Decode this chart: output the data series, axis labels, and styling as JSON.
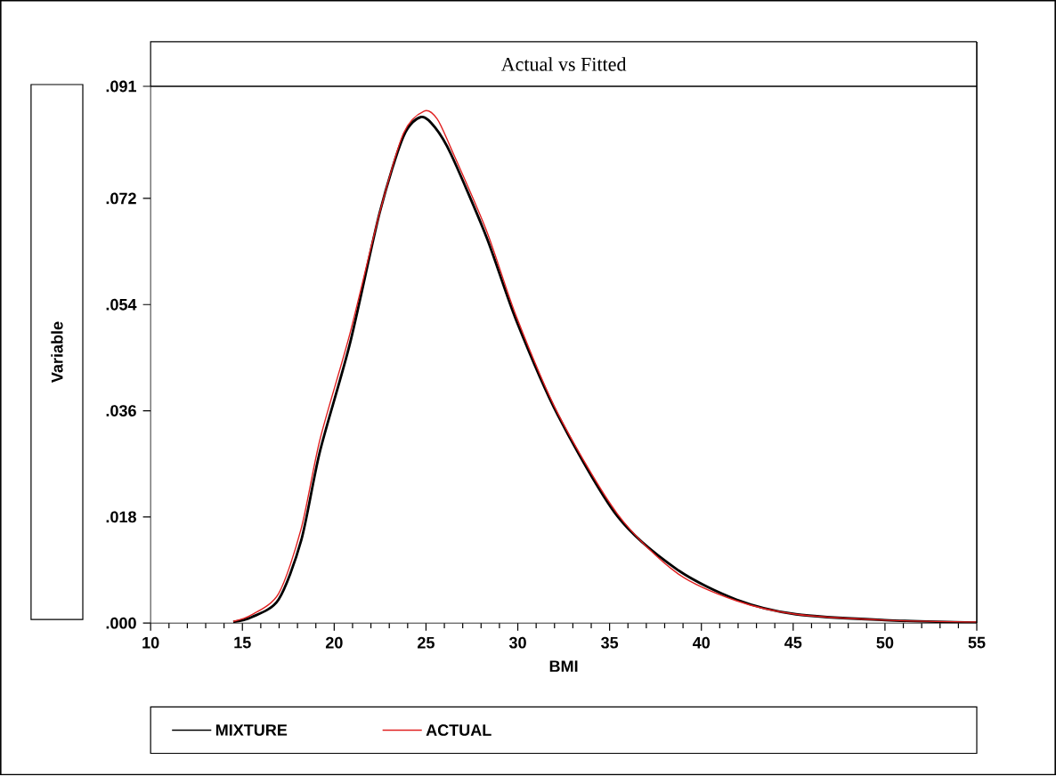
{
  "chart_data": {
    "type": "line",
    "title": "Actual vs Fitted",
    "xlabel": "BMI",
    "ylabel": "Variable",
    "xlim": [
      10,
      55
    ],
    "xticks": [
      10,
      15,
      20,
      25,
      30,
      35,
      40,
      45,
      50,
      55
    ],
    "ylim": [
      0,
      0.091
    ],
    "yticks": [
      {
        "value": 0,
        "label": ".000"
      },
      {
        "value": 0.018,
        "label": ".018"
      },
      {
        "value": 0.036,
        "label": ".036"
      },
      {
        "value": 0.054,
        "label": ".054"
      },
      {
        "value": 0.072,
        "label": ".072"
      },
      {
        "value": 0.091,
        "label": ".091"
      }
    ],
    "legend": "bottom",
    "grid": false,
    "marker": "none",
    "line_style": "solid",
    "series": [
      {
        "name": "MIXTURE",
        "color": "#000000",
        "x": [
          14.5,
          15.5,
          16.97,
          18.2,
          19.23,
          20.85,
          22.47,
          23.77,
          24.74,
          25.5,
          26.36,
          28.3,
          29.92,
          32.19,
          35.43,
          38.67,
          41.9,
          45.15,
          50,
          55
        ],
        "values": [
          0.0002,
          0.001,
          0.004,
          0.014,
          0.0292,
          0.0473,
          0.0695,
          0.0825,
          0.0858,
          0.084,
          0.0795,
          0.0654,
          0.0513,
          0.0352,
          0.0181,
          0.0091,
          0.004,
          0.0015,
          0.0005,
          0.0001
        ]
      },
      {
        "name": "ACTUAL",
        "color": "#e02020",
        "x": [
          14.5,
          15.5,
          16.97,
          18.2,
          19.23,
          20.85,
          22.47,
          23.77,
          24.9,
          25.6,
          26.36,
          28.3,
          29.92,
          32.19,
          35.43,
          38.67,
          41.9,
          45.15,
          50,
          55
        ],
        "values": [
          0.0003,
          0.0014,
          0.005,
          0.016,
          0.0312,
          0.049,
          0.0695,
          0.083,
          0.0868,
          0.0855,
          0.0805,
          0.0665,
          0.052,
          0.0355,
          0.0185,
          0.0085,
          0.0038,
          0.0015,
          0.0005,
          0.0002
        ]
      }
    ]
  }
}
